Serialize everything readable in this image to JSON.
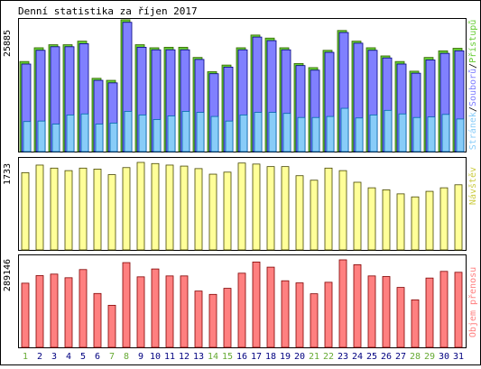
{
  "title": "Denní statistika za říjen 2017",
  "colors": {
    "hits": "#66cc33",
    "hits_border": "#336600",
    "files": "#8080ff",
    "files_border": "#000080",
    "pages": "#88ccf8",
    "pages_border": "#0066aa",
    "visits": "#ffff99",
    "visits_border": "#444400",
    "kbytes": "#ff8080",
    "kbytes_border": "#800000",
    "weekend_label": "#66aa33",
    "weekday_label": "#000080",
    "frame": "#000000"
  },
  "chart_data": [
    {
      "type": "bar",
      "name": "top-panel",
      "categories": [
        "1",
        "2",
        "3",
        "4",
        "5",
        "6",
        "7",
        "8",
        "9",
        "10",
        "11",
        "12",
        "13",
        "14",
        "15",
        "16",
        "17",
        "18",
        "19",
        "20",
        "21",
        "22",
        "23",
        "24",
        "25",
        "26",
        "27",
        "28",
        "29",
        "30",
        "31"
      ],
      "weekend_days": [
        "1",
        "7",
        "8",
        "14",
        "15",
        "21",
        "22",
        "28",
        "29"
      ],
      "y_max_label": "25885",
      "ymax": 25885,
      "right_label": {
        "pages": "Stránek",
        "files": "Souborů",
        "hits": "Přístupů",
        "sep": "/"
      },
      "series": [
        {
          "name": "Přístupů",
          "values": [
            17700,
            20400,
            21000,
            21000,
            21700,
            14400,
            14000,
            25900,
            21000,
            20400,
            20500,
            20500,
            18500,
            15700,
            17000,
            20400,
            22900,
            22300,
            20400,
            17300,
            16500,
            19900,
            23800,
            21700,
            20400,
            18800,
            17700,
            15800,
            18500,
            19800,
            20300
          ]
        },
        {
          "name": "Souborů",
          "values": [
            17200,
            19900,
            20600,
            20600,
            21200,
            14000,
            13500,
            25400,
            20500,
            20000,
            20000,
            20000,
            18100,
            15300,
            16600,
            20000,
            22500,
            21800,
            20000,
            16900,
            16000,
            19500,
            23400,
            21300,
            19900,
            18400,
            17200,
            15400,
            18000,
            19300,
            19800
          ]
        },
        {
          "name": "Stránek",
          "values": [
            5900,
            6000,
            5400,
            7200,
            7400,
            5400,
            5600,
            7900,
            7200,
            6300,
            7000,
            7900,
            7700,
            6900,
            6000,
            7200,
            7700,
            7700,
            7500,
            6700,
            6700,
            6900,
            8500,
            6600,
            7200,
            8100,
            7400,
            6700,
            6800,
            7300,
            6400
          ]
        }
      ]
    },
    {
      "type": "bar",
      "name": "middle-panel",
      "categories": [
        "1",
        "2",
        "3",
        "4",
        "5",
        "6",
        "7",
        "8",
        "9",
        "10",
        "11",
        "12",
        "13",
        "14",
        "15",
        "16",
        "17",
        "18",
        "19",
        "20",
        "21",
        "22",
        "23",
        "24",
        "25",
        "26",
        "27",
        "28",
        "29",
        "30",
        "31"
      ],
      "y_max_label": "1733",
      "ymax": 1733,
      "right_label": "Návštěv",
      "series": [
        {
          "name": "Návštěv",
          "values": [
            1530,
            1680,
            1620,
            1570,
            1620,
            1600,
            1490,
            1630,
            1733,
            1710,
            1680,
            1660,
            1610,
            1500,
            1540,
            1720,
            1700,
            1650,
            1650,
            1470,
            1380,
            1620,
            1570,
            1340,
            1230,
            1190,
            1110,
            1050,
            1160,
            1230,
            1290
          ]
        }
      ]
    },
    {
      "type": "bar",
      "name": "bottom-panel",
      "categories": [
        "1",
        "2",
        "3",
        "4",
        "5",
        "6",
        "7",
        "8",
        "9",
        "10",
        "11",
        "12",
        "13",
        "14",
        "15",
        "16",
        "17",
        "18",
        "19",
        "20",
        "21",
        "22",
        "23",
        "24",
        "25",
        "26",
        "27",
        "28",
        "29",
        "30",
        "31"
      ],
      "y_max_label": "289146",
      "ymax": 289146,
      "right_label": "Objem přenosu",
      "series": [
        {
          "name": "Objem přenosu",
          "values": [
            212000,
            237000,
            242000,
            230000,
            257000,
            178000,
            139000,
            280000,
            233000,
            259000,
            236000,
            236000,
            186000,
            175000,
            195000,
            245000,
            282000,
            265000,
            220000,
            213000,
            177000,
            215000,
            289146,
            273000,
            236000,
            234000,
            198000,
            157000,
            229000,
            251000,
            248000
          ]
        }
      ]
    }
  ]
}
